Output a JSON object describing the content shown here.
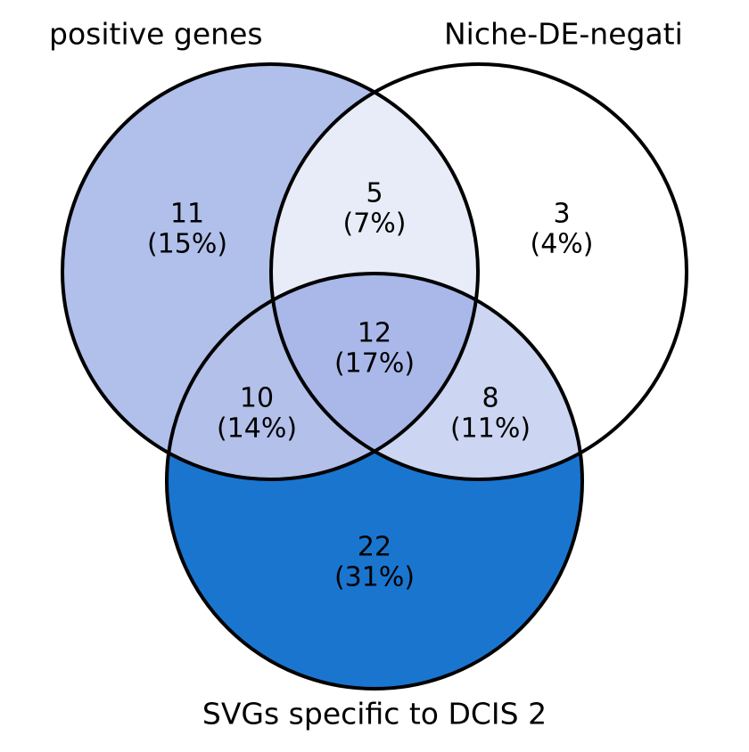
{
  "chart_data": {
    "type": "venn",
    "sets": [
      {
        "name": "positive genes"
      },
      {
        "name": "Niche-DE-negati"
      },
      {
        "name": "SVGs specific to DCIS 2"
      }
    ],
    "regions": [
      "A",
      "AB",
      "B",
      "AC",
      "ABC",
      "BC",
      "C"
    ],
    "values": [
      11,
      5,
      3,
      10,
      12,
      8,
      22
    ],
    "percent_labels": [
      "(15%)",
      "(7%)",
      "(4%)",
      "(14%)",
      "(17%)",
      "(11%)",
      "(31%)"
    ],
    "colors": [
      "#b0c0eb",
      "#e8ecf8",
      "#ffffff",
      "#b2c0ea",
      "#a9b8e9",
      "#ccd6f2",
      "#1a75cf"
    ]
  }
}
